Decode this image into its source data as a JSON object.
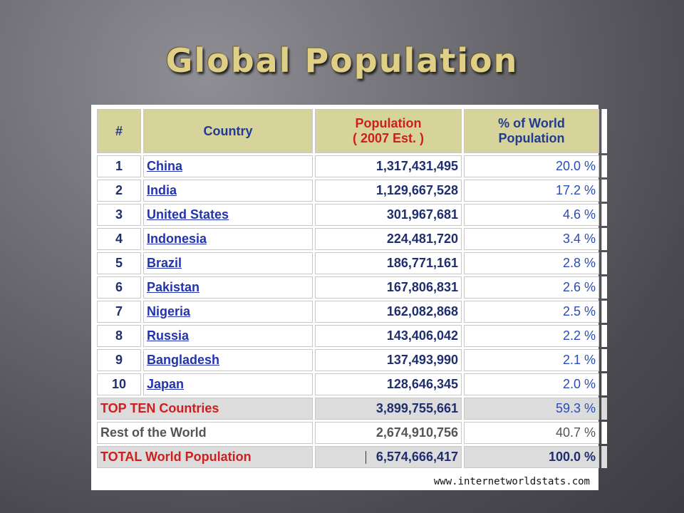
{
  "title": "Global Population",
  "table": {
    "headers": {
      "rank": "#",
      "country": "Country",
      "population_l1": "Population",
      "population_l2": "( 2007 Est. )",
      "pct_l1": "% of World",
      "pct_l2": "Population"
    },
    "rows": [
      {
        "rank": "1",
        "country": "China",
        "population": "1,317,431,495",
        "pct": "20.0 %"
      },
      {
        "rank": "2",
        "country": "India",
        "population": "1,129,667,528",
        "pct": "17.2 %"
      },
      {
        "rank": "3",
        "country": "United States",
        "population": "301,967,681",
        "pct": "4.6 %"
      },
      {
        "rank": "4",
        "country": "Indonesia",
        "population": "224,481,720",
        "pct": "3.4 %"
      },
      {
        "rank": "5",
        "country": "Brazil",
        "population": "186,771,161",
        "pct": "2.8 %"
      },
      {
        "rank": "6",
        "country": "Pakistan",
        "population": "167,806,831",
        "pct": "2.6 %"
      },
      {
        "rank": "7",
        "country": "Nigeria",
        "population": "162,082,868",
        "pct": "2.5 %"
      },
      {
        "rank": "8",
        "country": "Russia",
        "population": "143,406,042",
        "pct": "2.2 %"
      },
      {
        "rank": "9",
        "country": "Bangladesh",
        "population": "137,493,990",
        "pct": "2.1 %"
      },
      {
        "rank": "10",
        "country": "Japan",
        "population": "128,646,345",
        "pct": "2.0 %"
      }
    ],
    "top_ten": {
      "label": "TOP TEN Countries",
      "population": "3,899,755,661",
      "pct": "59.3 %"
    },
    "rest": {
      "label": "Rest of the World",
      "population": "2,674,910,756",
      "pct": "40.7 %"
    },
    "total": {
      "label": "TOTAL World Population",
      "population": "6,574,666,417",
      "pct": "100.0 %"
    }
  },
  "source": "www.internetworldstats.com",
  "colors": {
    "header_bg": "#d6d39b",
    "title": "#e0cf86",
    "link": "#2233b0",
    "accent_red": "#cc2020"
  }
}
